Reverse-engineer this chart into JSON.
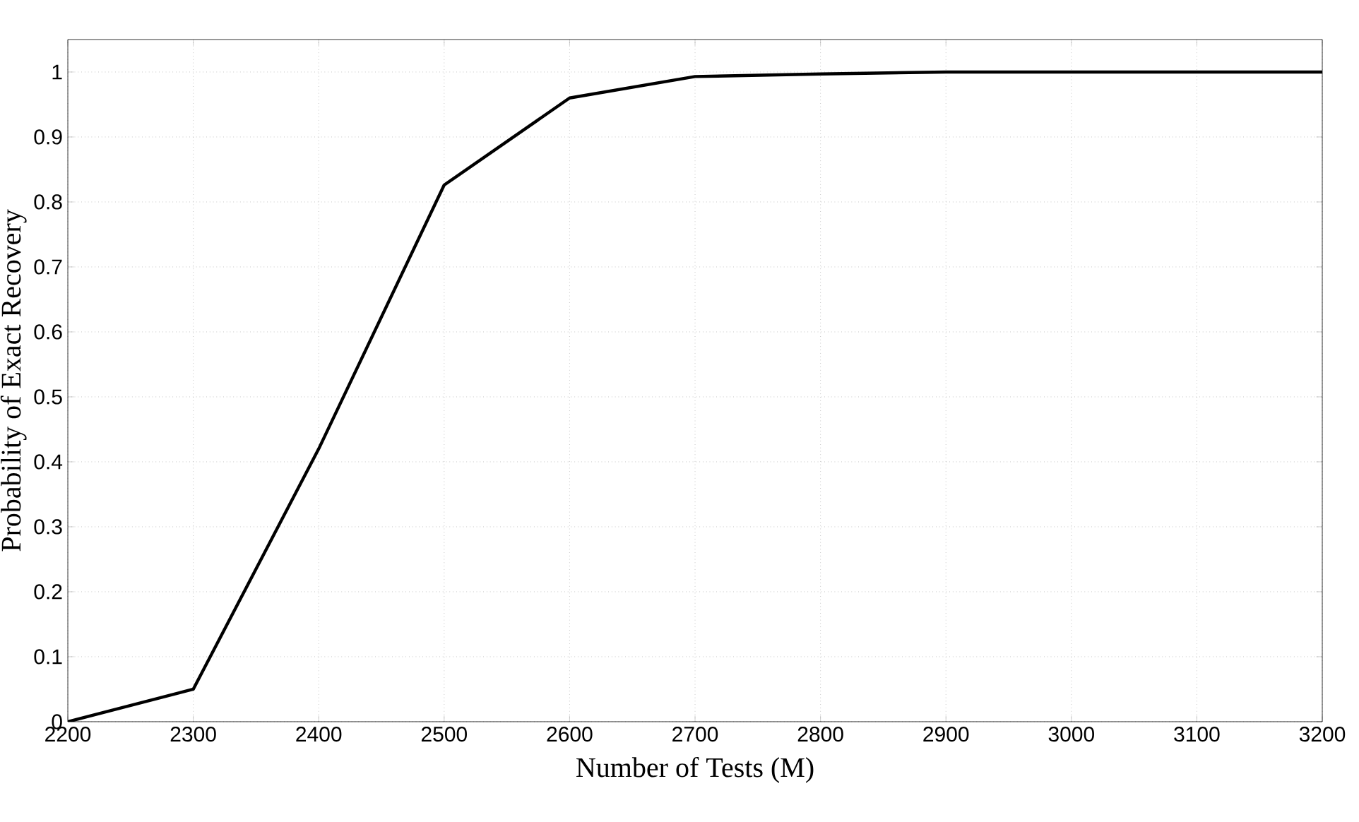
{
  "chart_data": {
    "type": "line",
    "xlabel": "Number of Tests (M)",
    "ylabel": "Probability of Exact Recovery",
    "x": [
      2200,
      2300,
      2400,
      2500,
      2600,
      2700,
      2800,
      2900,
      3000,
      3100,
      3200
    ],
    "series": [
      {
        "color": "#000000",
        "values": [
          0,
          0.05,
          0.42,
          0.826,
          0.96,
          0.993,
          0.997,
          1,
          1,
          1,
          1
        ]
      }
    ],
    "xlim": [
      2200,
      3200
    ],
    "ylim": [
      0,
      1.05
    ],
    "xticks": [
      2200,
      2300,
      2400,
      2500,
      2600,
      2700,
      2800,
      2900,
      3000,
      3100,
      3200
    ],
    "yticks": [
      0,
      0.1,
      0.2,
      0.3,
      0.4,
      0.5,
      0.6,
      0.7,
      0.8,
      0.9,
      1
    ],
    "grid": true,
    "line_style": "solid"
  }
}
